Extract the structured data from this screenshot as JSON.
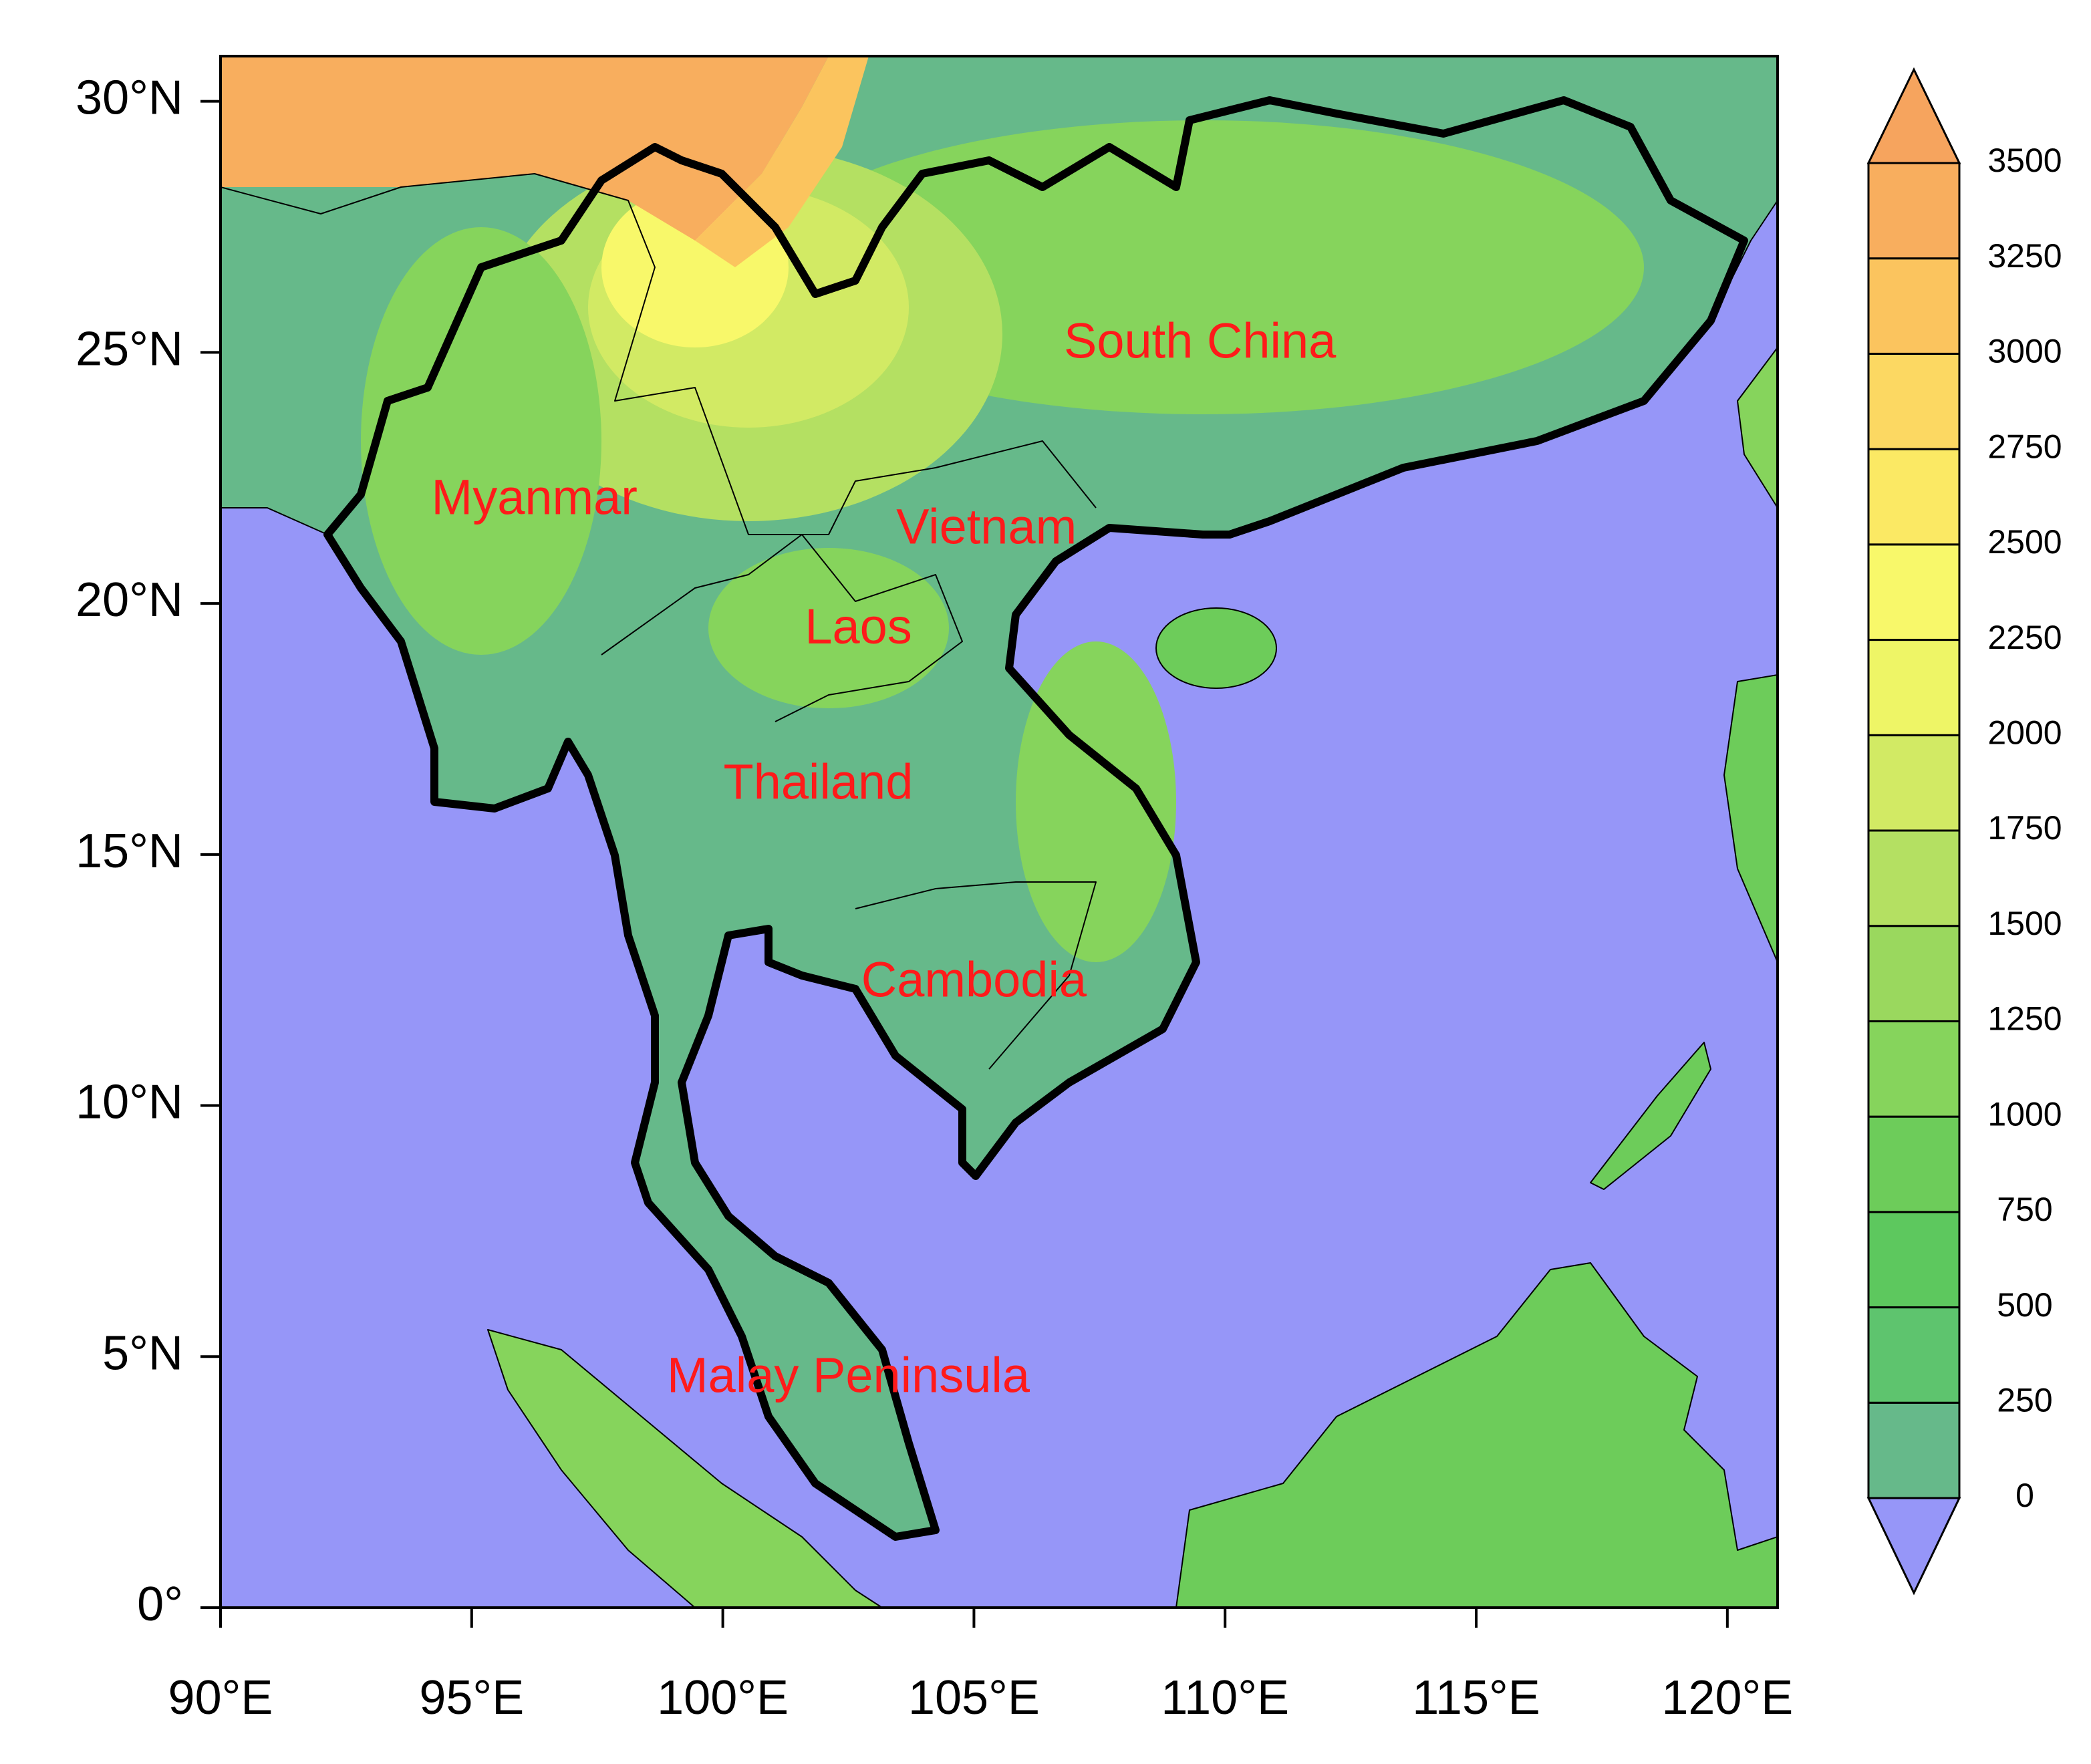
{
  "map": {
    "xlim": [
      90,
      121
    ],
    "ylim": [
      0,
      30.9
    ],
    "xticks": [
      {
        "value": 90,
        "label": "90°E"
      },
      {
        "value": 95,
        "label": "95°E"
      },
      {
        "value": 100,
        "label": "100°E"
      },
      {
        "value": 105,
        "label": "105°E"
      },
      {
        "value": 110,
        "label": "110°E"
      },
      {
        "value": 115,
        "label": "115°E"
      },
      {
        "value": 120,
        "label": "120°E"
      }
    ],
    "yticks": [
      {
        "value": 0,
        "label": "0°"
      },
      {
        "value": 5,
        "label": "5°N"
      },
      {
        "value": 10,
        "label": "10°N"
      },
      {
        "value": 15,
        "label": "15°N"
      },
      {
        "value": 20,
        "label": "20°N"
      },
      {
        "value": 25,
        "label": "25°N"
      },
      {
        "value": 30,
        "label": "30°N"
      }
    ],
    "region_labels": [
      {
        "text": "South China",
        "lon": 109.5,
        "lat": 25.15
      },
      {
        "text": "Myanmar",
        "lon": 96.25,
        "lat": 22.04
      },
      {
        "text": "Vietnam",
        "lon": 105.25,
        "lat": 21.45
      },
      {
        "text": "Laos",
        "lon": 102.7,
        "lat": 19.46
      },
      {
        "text": "Thailand",
        "lon": 101.9,
        "lat": 16.37
      },
      {
        "text": "Cambodia",
        "lon": 105.0,
        "lat": 12.43
      },
      {
        "text": "Malay Peninsula",
        "lon": 102.5,
        "lat": 4.55
      }
    ],
    "label_color": "#ff1a1a",
    "colorbar": {
      "levels": [
        0,
        250,
        500,
        750,
        1000,
        1250,
        1500,
        1750,
        2000,
        2250,
        2500,
        2750,
        3000,
        3250,
        3500
      ],
      "colors": [
        "#9696f8",
        "#66b98a",
        "#5ec46e",
        "#5dc85e",
        "#6dcc5a",
        "#86d45c",
        "#9ad85e",
        "#b4e062",
        "#d2ea64",
        "#eef566",
        "#f8f86a",
        "#fbe964",
        "#fcd862",
        "#fbc45e",
        "#f8ae5e",
        "#f6a45e"
      ]
    }
  }
}
